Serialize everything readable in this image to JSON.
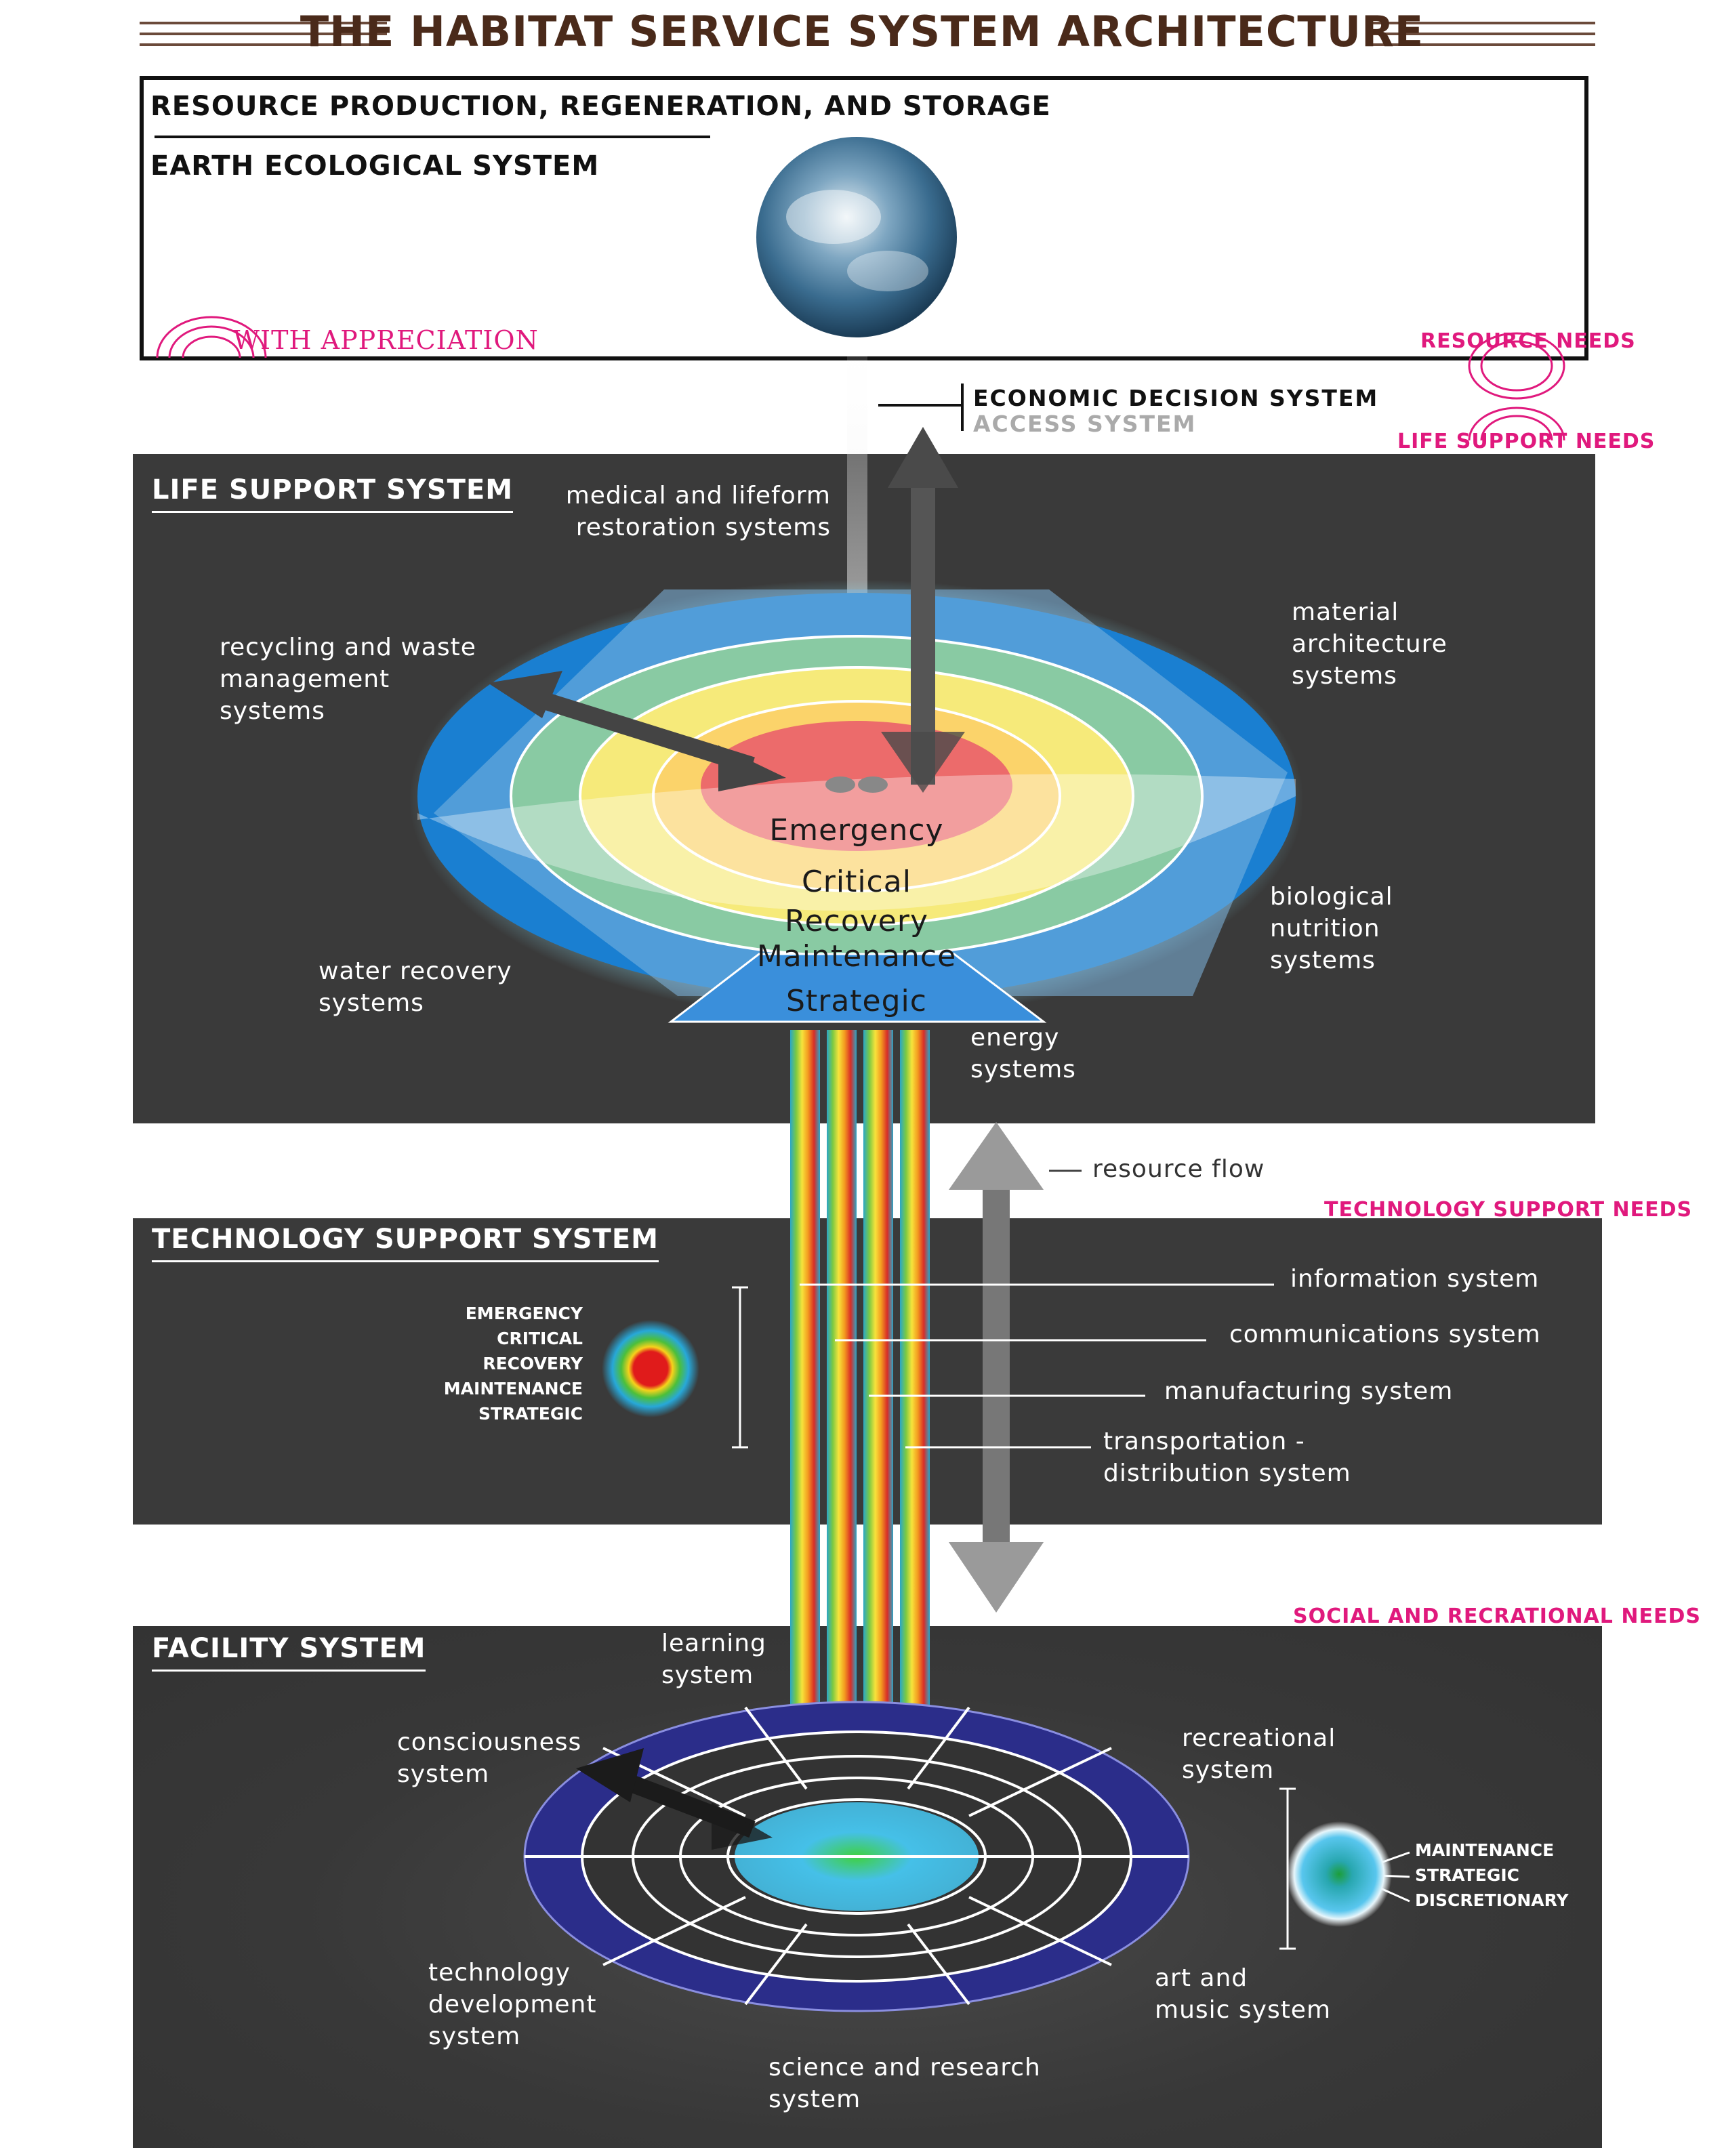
{
  "title": "THE HABITAT SERVICE SYSTEM ARCHITECTURE",
  "resource_box": {
    "heading": "RESOURCE PRODUCTION, REGENERATION, AND STORAGE",
    "sub": "EARTH ECOLOGICAL SYSTEM",
    "appreciation": "WITH APPRECIATION",
    "needs": "RESOURCE NEEDS"
  },
  "economic": {
    "decision": "ECONOMIC DECISION SYSTEM",
    "access": "ACCESS SYSTEM",
    "life_needs": "LIFE SUPPORT NEEDS"
  },
  "life_support": {
    "title": "LIFE SUPPORT SYSTEM",
    "medical": [
      "medical and lifeform",
      "restoration systems"
    ],
    "recycling": [
      "recycling and waste",
      "management",
      "systems"
    ],
    "material": [
      "material",
      "architecture",
      "systems"
    ],
    "biological": [
      "biological",
      "nutrition",
      "systems"
    ],
    "water": [
      "water recovery",
      "systems"
    ],
    "energy": [
      "energy",
      "systems"
    ],
    "rings": [
      "Emergency",
      "Critical",
      "Recovery",
      "Maintenance",
      "Strategic"
    ]
  },
  "resource_flow": "resource flow",
  "technology": {
    "needs": "TECHNOLOGY SUPPORT NEEDS",
    "title": "TECHNOLOGY SUPPORT SYSTEM",
    "levels": [
      "EMERGENCY",
      "CRITICAL",
      "RECOVERY",
      "MAINTENANCE",
      "STRATEGIC"
    ],
    "information": "information system",
    "communications": "communications system",
    "manufacturing": "manufacturing system",
    "transportation": [
      "transportation -",
      "distribution system"
    ]
  },
  "facility": {
    "needs": "SOCIAL AND RECRATIONAL NEEDS",
    "title": "FACILITY SYSTEM",
    "learning": [
      "learning",
      "system"
    ],
    "consciousness": [
      "consciousness",
      "system"
    ],
    "recreational": [
      "recreational",
      "system"
    ],
    "technology": [
      "technology",
      "development",
      "system"
    ],
    "art": [
      "art and",
      "music system"
    ],
    "science": [
      "science and research",
      "system"
    ],
    "levels": [
      "MAINTENANCE",
      "STRATEGIC",
      "DISCRETIONARY"
    ]
  },
  "colors": {
    "panel": "#3a3a3a",
    "pink": "#e0197d",
    "title_brown": "#4a2a1a",
    "navy_ring": "#2b2d8a",
    "blue_ring": "#1a7fd1"
  }
}
